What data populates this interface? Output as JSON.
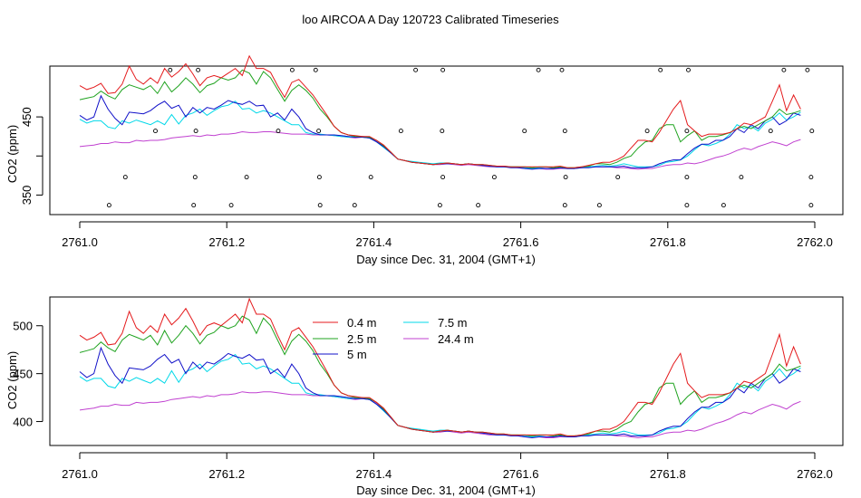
{
  "figure": {
    "title": "loo AIRCOA A  Day 120723  Calibrated Timeseries"
  },
  "colors": {
    "0.4 m": "#e41a1c",
    "2.5 m": "#1fa31f",
    "5 m": "#1010c8",
    "7.5 m": "#00d8e8",
    "24.4 m": "#c040d0",
    "axis": "#000000"
  },
  "chart_data": [
    {
      "type": "line",
      "panel": "top",
      "xlabel": "Day since Dec. 31, 2004 (GMT+1)",
      "ylabel": "CO2 (ppm)",
      "xlim": [
        2761.0,
        2762.0
      ],
      "ylim": [
        325,
        515
      ],
      "xticks": [
        2761.0,
        2761.2,
        2761.4,
        2761.6,
        2761.8,
        2762.0
      ],
      "xtick_labels": [
        "2761.0",
        "2761.2",
        "2761.4",
        "2761.6",
        "2761.8",
        "2762.0"
      ],
      "yticks": [
        350,
        450
      ],
      "ytick_labels": [
        "350",
        "450"
      ],
      "ytick_minor": [
        400
      ],
      "grid": false,
      "legend": "none",
      "markers": {
        "rows": [
          {
            "y": 510,
            "x": [
              2761.123,
              2761.161,
              2761.289,
              2761.321,
              2761.457,
              2761.494,
              2761.624,
              2761.656,
              2761.79,
              2761.828,
              2761.958,
              2761.99
            ]
          },
          {
            "y": 432,
            "x": [
              2761.103,
              2761.158,
              2761.27,
              2761.325,
              2761.437,
              2761.493,
              2761.605,
              2761.66,
              2761.772,
              2761.826,
              2761.94,
              2761.996
            ]
          },
          {
            "y": 373,
            "x": [
              2761.062,
              2761.157,
              2761.227,
              2761.326,
              2761.396,
              2761.494,
              2761.564,
              2761.661,
              2761.732,
              2761.826,
              2761.9,
              2761.995
            ]
          },
          {
            "y": 337,
            "x": [
              2761.04,
              2761.155,
              2761.206,
              2761.327,
              2761.374,
              2761.49,
              2761.542,
              2761.66,
              2761.707,
              2761.826,
              2761.876,
              2761.995
            ]
          }
        ]
      },
      "series_ref": "shared"
    },
    {
      "type": "line",
      "panel": "bottom",
      "xlabel": "Day since Dec. 31, 2004 (GMT+1)",
      "ylabel": "CO2 (ppm)",
      "xlim": [
        2761.0,
        2762.0
      ],
      "ylim": [
        375,
        530
      ],
      "xticks": [
        2761.0,
        2761.2,
        2761.4,
        2761.6,
        2761.8,
        2762.0
      ],
      "xtick_labels": [
        "2761.0",
        "2761.2",
        "2761.4",
        "2761.6",
        "2761.8",
        "2762.0"
      ],
      "yticks": [
        400,
        450,
        500
      ],
      "ytick_labels": [
        "400",
        "450",
        "500"
      ],
      "grid": false,
      "legend": "top-center",
      "series_ref": "shared"
    }
  ],
  "series": [
    {
      "name": "0.4 m",
      "values": [
        490,
        485,
        488,
        493,
        480,
        481,
        492,
        515,
        498,
        492,
        500,
        493,
        512,
        501,
        508,
        518,
        505,
        490,
        500,
        503,
        500,
        506,
        512,
        503,
        528,
        512,
        512,
        507,
        490,
        475,
        494,
        498,
        488,
        478,
        465,
        452,
        438,
        430,
        427,
        426,
        425,
        425,
        420,
        414,
        405,
        396,
        394,
        392,
        391,
        390,
        389,
        390,
        391,
        390,
        389,
        390,
        389,
        389,
        388,
        387,
        387,
        386,
        386,
        386,
        386,
        386,
        386,
        386,
        387,
        385,
        385,
        386,
        388,
        390,
        392,
        392,
        395,
        400,
        410,
        420,
        420,
        418,
        430,
        445,
        460,
        471,
        440,
        432,
        425,
        428,
        428,
        428,
        430,
        435,
        442,
        440,
        445,
        450,
        470,
        491,
        458,
        478,
        460
      ]
    },
    {
      "name": "2.5 m",
      "values": [
        472,
        474,
        476,
        483,
        477,
        473,
        485,
        491,
        488,
        485,
        490,
        480,
        495,
        482,
        490,
        500,
        492,
        481,
        490,
        493,
        500,
        497,
        500,
        510,
        506,
        492,
        508,
        500,
        485,
        470,
        484,
        491,
        484,
        474,
        460,
        450,
        438,
        430,
        427,
        425,
        425,
        424,
        420,
        413,
        405,
        396,
        394,
        392,
        391,
        390,
        389,
        390,
        391,
        390,
        389,
        390,
        389,
        389,
        388,
        387,
        387,
        386,
        386,
        386,
        385,
        386,
        386,
        385,
        386,
        385,
        385,
        386,
        387,
        390,
        390,
        389,
        392,
        397,
        400,
        410,
        418,
        420,
        435,
        440,
        440,
        418,
        426,
        432,
        420,
        425,
        425,
        427,
        430,
        435,
        438,
        435,
        440,
        445,
        450,
        460,
        453,
        455,
        458
      ]
    },
    {
      "name": "5 m",
      "values": [
        452,
        446,
        450,
        477,
        460,
        448,
        440,
        456,
        455,
        454,
        458,
        465,
        470,
        461,
        465,
        450,
        462,
        455,
        462,
        460,
        465,
        471,
        468,
        466,
        470,
        464,
        465,
        450,
        455,
        446,
        460,
        450,
        435,
        430,
        427,
        427,
        427,
        426,
        425,
        424,
        424,
        423,
        418,
        412,
        404,
        396,
        394,
        392,
        391,
        390,
        389,
        390,
        390,
        390,
        389,
        390,
        389,
        388,
        387,
        386,
        386,
        385,
        385,
        384,
        383,
        384,
        384,
        384,
        385,
        384,
        384,
        385,
        385,
        386,
        386,
        386,
        386,
        387,
        385,
        385,
        385,
        386,
        390,
        393,
        395,
        395,
        403,
        410,
        415,
        415,
        420,
        420,
        425,
        435,
        430,
        440,
        435,
        445,
        450,
        440,
        445,
        455,
        452
      ]
    },
    {
      "name": "7.5 m",
      "values": [
        447,
        442,
        445,
        445,
        437,
        435,
        445,
        442,
        446,
        443,
        440,
        445,
        440,
        453,
        441,
        452,
        455,
        460,
        452,
        458,
        463,
        465,
        470,
        460,
        461,
        455,
        458,
        455,
        450,
        445,
        440,
        440,
        430,
        428,
        428,
        427,
        426,
        425,
        424,
        424,
        424,
        423,
        418,
        411,
        404,
        396,
        394,
        393,
        392,
        391,
        390,
        391,
        391,
        390,
        389,
        390,
        389,
        388,
        387,
        386,
        386,
        386,
        386,
        385,
        384,
        385,
        384,
        384,
        385,
        384,
        384,
        385,
        386,
        387,
        388,
        387,
        388,
        390,
        388,
        386,
        386,
        386,
        388,
        392,
        393,
        395,
        400,
        408,
        415,
        413,
        416,
        420,
        428,
        440,
        435,
        438,
        432,
        442,
        447,
        455,
        446,
        450,
        456
      ]
    },
    {
      "name": "24.4 m",
      "values": [
        412,
        413,
        414,
        416,
        416,
        418,
        417,
        417,
        420,
        419,
        420,
        420,
        421,
        423,
        424,
        425,
        426,
        425,
        427,
        426,
        428,
        428,
        429,
        431,
        430,
        430,
        431,
        431,
        430,
        429,
        428,
        428,
        428,
        427,
        427,
        427,
        426,
        425,
        424,
        423,
        424,
        423,
        419,
        412,
        404,
        396,
        394,
        392,
        391,
        390,
        389,
        389,
        390,
        389,
        388,
        389,
        388,
        387,
        386,
        386,
        386,
        386,
        385,
        384,
        384,
        384,
        383,
        383,
        384,
        384,
        384,
        385,
        386,
        386,
        386,
        386,
        385,
        385,
        384,
        383,
        384,
        384,
        386,
        388,
        389,
        389,
        391,
        390,
        392,
        395,
        398,
        400,
        403,
        407,
        410,
        408,
        412,
        415,
        418,
        416,
        413,
        418,
        421
      ]
    }
  ],
  "series_x": {
    "start": 2761.0,
    "step": 0.009615,
    "count": 103
  }
}
